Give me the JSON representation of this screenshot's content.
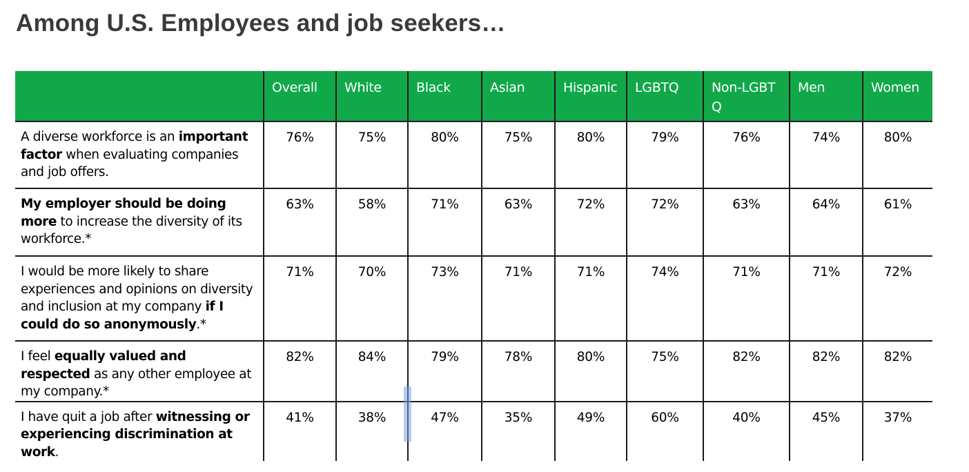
{
  "title": "Among U.S. Employees and job seekers…",
  "columns": [
    "Overall",
    "White",
    "Black",
    "Asian",
    "Hispanic",
    "LGBTQ",
    "Non-LGBTQ",
    "Men",
    "Women"
  ],
  "rows": [
    {
      "statement_parts": [
        {
          "text": "A diverse workforce is an ",
          "bold": false
        },
        {
          "text": "important factor",
          "bold": true
        },
        {
          "text": " when evaluating companies and job offers.",
          "bold": false
        }
      ],
      "values": [
        "76%",
        "75%",
        "80%",
        "75%",
        "80%",
        "79%",
        "76%",
        "74%",
        "80%"
      ]
    },
    {
      "statement_parts": [
        {
          "text": "My employer should be doing more",
          "bold": true
        },
        {
          "text": " to increase the diversity of its workforce.*",
          "bold": false
        }
      ],
      "values": [
        "63%",
        "58%",
        "71%",
        "63%",
        "72%",
        "72%",
        "63%",
        "64%",
        "61%"
      ]
    },
    {
      "statement_parts": [
        {
          "text": "I would be more likely to share experiences and opinions on diversity and inclusion at my company ",
          "bold": false
        },
        {
          "text": "if I could do so anonymously",
          "bold": true
        },
        {
          "text": ".*",
          "bold": false
        }
      ],
      "values": [
        "71%",
        "70%",
        "73%",
        "71%",
        "71%",
        "74%",
        "71%",
        "71%",
        "72%"
      ]
    },
    {
      "statement_parts": [
        {
          "text": "I feel ",
          "bold": false
        },
        {
          "text": "equally valued and respected",
          "bold": true
        },
        {
          "text": " as any other employee at my company.*",
          "bold": false
        }
      ],
      "values": [
        "82%",
        "84%",
        "79%",
        "78%",
        "80%",
        "75%",
        "82%",
        "82%",
        "82%"
      ]
    },
    {
      "statement_parts": [
        {
          "text": "I have quit a job after ",
          "bold": false
        },
        {
          "text": "witnessing or experiencing discrimination at work",
          "bold": true
        },
        {
          "text": ".",
          "bold": false
        }
      ],
      "values": [
        "41%",
        "38%",
        "47%",
        "35%",
        "49%",
        "60%",
        "40%",
        "45%",
        "37%"
      ]
    }
  ],
  "colors": {
    "header_background": "#11a84a",
    "header_text": "#ffffff",
    "title_text": "#3a3a3a",
    "grid_lines": "#1a1a1a"
  }
}
